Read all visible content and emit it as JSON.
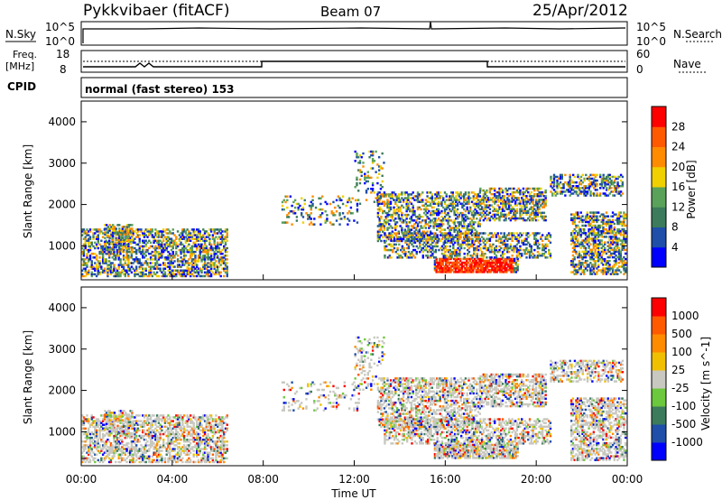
{
  "header": {
    "station": "Pykkvibaer (fitACF)",
    "beam": "Beam 07",
    "date": "25/Apr/2012"
  },
  "nsky_panel": {
    "left_label": "N.Sky",
    "right_label": "N.Search",
    "left_ticks": [
      "10^5",
      "10^0"
    ],
    "right_ticks": [
      "10^5",
      "10^0"
    ]
  },
  "freq_panel": {
    "left_label_1": "Freq.",
    "left_label_2": "[MHz]",
    "left_ticks": [
      "18",
      "8"
    ],
    "right_label": "Nave",
    "right_ticks": [
      "60",
      "0"
    ]
  },
  "cpid": {
    "label": "CPID",
    "text": "normal (fast stereo) 153"
  },
  "x_axis": {
    "label": "Time UT",
    "ticks": [
      "00:00",
      "04:00",
      "08:00",
      "12:00",
      "16:00",
      "20:00",
      "00:00"
    ]
  },
  "power_colorbar": {
    "label": "Power [dB]",
    "ticks": [
      "28",
      "24",
      "20",
      "16",
      "12",
      "8",
      "4"
    ],
    "colors": [
      "#0000ff",
      "#1f4fa8",
      "#3c7b5c",
      "#5aa15a",
      "#f0d000",
      "#ff8c00",
      "#ff5a00",
      "#ff0000"
    ]
  },
  "velocity_colorbar": {
    "label": "Velocity [m s^-1]",
    "ticks": [
      "1000",
      "500",
      "100",
      "25",
      "-25",
      "-100",
      "-500",
      "-1000"
    ],
    "colors": [
      "#ff0000",
      "#ff5a00",
      "#ff8c00",
      "#f0c000",
      "#c8c8c0",
      "#6cc83c",
      "#3c7b5c",
      "#1f4fa8",
      "#0000ff"
    ]
  },
  "chart_data": [
    {
      "type": "heatmap",
      "title": "Power",
      "ylabel": "Slant Range [km]",
      "xlabel": "Time UT",
      "ylim": [
        180,
        4500
      ],
      "yticks": [
        "1000",
        "2000",
        "3000",
        "4000"
      ],
      "xlim": [
        0,
        24
      ],
      "colorbar": "Power [dB]"
    },
    {
      "type": "heatmap",
      "title": "Velocity",
      "ylabel": "Slant Range [km]",
      "xlabel": "Time UT",
      "ylim": [
        180,
        4500
      ],
      "yticks": [
        "1000",
        "2000",
        "3000",
        "4000"
      ],
      "xlim": [
        0,
        24
      ],
      "colorbar": "Velocity [m s^-1]"
    }
  ]
}
